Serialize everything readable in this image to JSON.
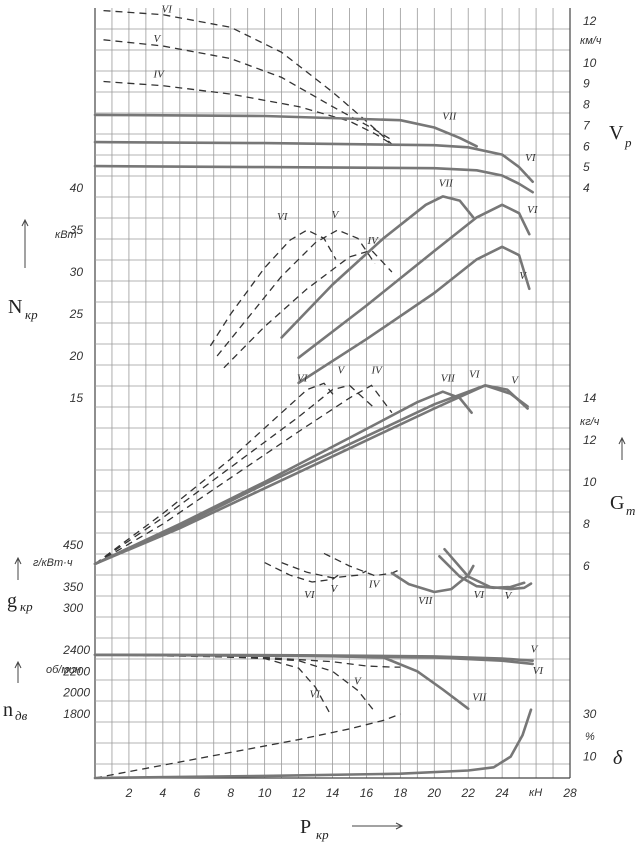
{
  "chart_data": {
    "type": "line",
    "x_axis": {
      "label_main": "P",
      "label_sub": "кр",
      "unit": "кН",
      "ticks": [
        "2",
        "4",
        "6",
        "8",
        "10",
        "12",
        "14",
        "16",
        "18",
        "20",
        "22",
        "24",
        "",
        "28"
      ],
      "range": [
        0,
        28
      ]
    },
    "gear_labels": [
      "IV",
      "V",
      "VI",
      "VII"
    ],
    "panels": {
      "velocity": {
        "label_main": "V",
        "label_sub": "р",
        "unit": "км/ч",
        "ticks": [
          "12",
          "10",
          "9",
          "8",
          "7",
          "6",
          "5",
          "4"
        ],
        "series": [
          {
            "gear": "VI",
            "style": "dashed",
            "x": [
              0.5,
              4,
              8,
              11,
              14,
              16,
              17.5
            ],
            "y": [
              12.5,
              12.3,
              11.7,
              10.5,
              8.6,
              7.2,
              6.1
            ]
          },
          {
            "gear": "V",
            "style": "dashed",
            "x": [
              0.5,
              4,
              8,
              11,
              14,
              16.5,
              17.5
            ],
            "y": [
              11.1,
              10.8,
              10.2,
              9.3,
              7.9,
              6.8,
              6.3
            ]
          },
          {
            "gear": "IV",
            "style": "dashed",
            "x": [
              0.5,
              4,
              8,
              12,
              15,
              16.5,
              17.5
            ],
            "y": [
              9.1,
              8.9,
              8.5,
              7.9,
              7.2,
              6.6,
              6.1
            ]
          },
          {
            "gear": "VII",
            "style": "solid",
            "x": [
              0,
              10,
              18,
              20,
              21.5,
              22.5
            ],
            "y": [
              7.5,
              7.45,
              7.25,
              6.9,
              6.4,
              6.0
            ]
          },
          {
            "gear": "VI",
            "style": "solid",
            "x": [
              0,
              10,
              20,
              22,
              24,
              25,
              25.8
            ],
            "y": [
              6.2,
              6.15,
              6.05,
              5.95,
              5.6,
              5.0,
              4.3
            ]
          },
          {
            "gear": "V",
            "style": "solid",
            "x": [
              0,
              10,
              20,
              22.5,
              24,
              25,
              25.8
            ],
            "y": [
              5.05,
              5.0,
              4.95,
              4.85,
              4.6,
              4.2,
              3.8
            ]
          }
        ]
      },
      "power": {
        "label_main": "N",
        "label_sub": "кр",
        "unit": "кВт",
        "ticks": [
          "40",
          "35",
          "30",
          "25",
          "20",
          "15"
        ],
        "series": [
          {
            "gear": "VI",
            "style": "dashed",
            "x": [
              6.8,
              8,
              10,
              11.5,
              12.5,
              13.5,
              14.2
            ],
            "y": [
              21.2,
              25,
              30.5,
              33.8,
              35,
              34,
              31.5
            ]
          },
          {
            "gear": "V",
            "style": "dashed",
            "x": [
              7.2,
              9,
              11,
              13,
              14.3,
              15.5,
              16.5
            ],
            "y": [
              20,
              24.5,
              29.5,
              33.5,
              35,
              34,
              31
            ]
          },
          {
            "gear": "IV",
            "style": "dashed",
            "x": [
              7.6,
              10,
              12.5,
              15,
              16.3,
              17.5
            ],
            "y": [
              18.6,
              23.5,
              28,
              31.8,
              32.6,
              30
            ]
          },
          {
            "gear": "VII",
            "style": "solid",
            "x": [
              11,
              14,
              17,
              19.5,
              20.5,
              21.5,
              22.3
            ],
            "y": [
              22.2,
              28.5,
              34,
              38,
              39,
              38.5,
              36.5
            ]
          },
          {
            "gear": "VI",
            "style": "solid",
            "x": [
              12,
              16,
              20,
              22.5,
              24,
              25,
              25.6
            ],
            "y": [
              19.8,
              26,
              32.5,
              36.5,
              38,
              37,
              34.5
            ]
          },
          {
            "gear": "V",
            "style": "solid",
            "x": [
              12,
              16,
              20,
              22.5,
              24,
              25,
              25.6
            ],
            "y": [
              16.8,
              22,
              27.5,
              31.5,
              33,
              32,
              28
            ]
          }
        ]
      },
      "fuel_rate": {
        "label_main": "G",
        "label_sub": "т",
        "unit": "кг/ч",
        "ticks": [
          "14",
          "12",
          "10",
          "8",
          "6"
        ],
        "series": [
          {
            "gear": "VI",
            "style": "dashed",
            "x": [
              0,
              4,
              8,
              11,
              12.5,
              13.5,
              14.2
            ],
            "y": [
              6.1,
              8.5,
              11.1,
              13.3,
              14.4,
              14.7,
              14.0
            ]
          },
          {
            "gear": "V",
            "style": "dashed",
            "x": [
              0,
              4,
              8,
              12,
              14,
              15,
              16.5
            ],
            "y": [
              6.1,
              8.3,
              10.7,
              13.1,
              14.4,
              14.6,
              13.5
            ]
          },
          {
            "gear": "IV",
            "style": "dashed",
            "x": [
              0,
              4,
              8,
              12,
              15,
              16.3,
              17.5
            ],
            "y": [
              6.1,
              8.0,
              10.2,
              12.4,
              14.0,
              14.6,
              13.3
            ]
          },
          {
            "gear": "VII",
            "style": "solid",
            "x": [
              0,
              5,
              10,
              15,
              19,
              20.5,
              21.5,
              22.2
            ],
            "y": [
              6.1,
              8.0,
              10.0,
              12.1,
              13.8,
              14.3,
              14.0,
              13.3
            ]
          },
          {
            "gear": "VI",
            "style": "solid",
            "x": [
              0,
              5,
              10,
              15,
              20,
              23,
              24.5,
              25.5
            ],
            "y": [
              6.1,
              7.9,
              9.9,
              11.8,
              13.7,
              14.6,
              14.2,
              13.6
            ]
          },
          {
            "gear": "V",
            "style": "solid",
            "x": [
              0,
              5,
              10,
              15,
              20,
              23,
              24.3,
              25.5
            ],
            "y": [
              6.1,
              7.8,
              9.7,
              11.6,
              13.5,
              14.6,
              14.4,
              13.5
            ]
          }
        ]
      },
      "specific_fuel": {
        "label_main": "g",
        "label_sub": "кр",
        "unit": "г/кВт·ч",
        "ticks": [
          "450",
          "350",
          "300"
        ],
        "series": [
          {
            "gear": "VI",
            "style": "dashed",
            "x": [
              10,
              11.5,
              12.8,
              14,
              14.5
            ],
            "y": [
              408,
              378,
              362,
              368,
              383
            ]
          },
          {
            "gear": "V",
            "style": "dashed",
            "x": [
              11,
              12.5,
              14,
              15.5,
              16
            ],
            "y": [
              408,
              385,
              372,
              378,
              388
            ]
          },
          {
            "gear": "IV",
            "style": "dashed",
            "x": [
              13.5,
              15,
              16.5,
              17.5,
              18
            ],
            "y": [
              430,
              400,
              377,
              383,
              392
            ]
          },
          {
            "gear": "VII",
            "style": "solid",
            "x": [
              17.5,
              18.5,
              20,
              21,
              22,
              22.3
            ],
            "y": [
              383,
              357,
              338,
              345,
              378,
              400
            ]
          },
          {
            "gear": "VI",
            "style": "solid",
            "x": [
              20.3,
              21.5,
              22.5,
              23.5,
              24.5,
              25.3
            ],
            "y": [
              423,
              375,
              352,
              348,
              350,
              360
            ]
          },
          {
            "gear": "V",
            "style": "solid",
            "x": [
              20.6,
              22,
              23.3,
              24.5,
              25.3,
              25.7
            ],
            "y": [
              440,
              375,
              350,
              345,
              348,
              358
            ]
          }
        ]
      },
      "engine_speed": {
        "label_main": "n",
        "label_sub": "дв",
        "unit": "об/мин",
        "ticks": [
          "2400",
          "2200",
          "2000",
          "1800"
        ],
        "series": [
          {
            "gear": "VI",
            "style": "dashed",
            "x": [
              0,
              6,
              10,
              12,
              13,
              13.8
            ],
            "y": [
              2355,
              2345,
              2320,
              2230,
              2050,
              1820
            ]
          },
          {
            "gear": "V",
            "style": "dashed",
            "x": [
              0,
              8,
              12,
              14,
              15.5,
              16.5
            ],
            "y": [
              2355,
              2340,
              2300,
              2200,
              2020,
              1820
            ]
          },
          {
            "gear": "IV",
            "style": "dashed",
            "x": [
              0,
              10,
              14,
              16,
              17.5,
              18
            ],
            "y": [
              2355,
              2330,
              2290,
              2250,
              2240,
              2240
            ]
          },
          {
            "gear": "VII",
            "style": "solid",
            "x": [
              0,
              12,
              17,
              19,
              20.5,
              22
            ],
            "y": [
              2355,
              2350,
              2330,
              2200,
              2030,
              1850
            ]
          },
          {
            "gear": "VI",
            "style": "solid",
            "x": [
              0,
              12,
              20,
              24,
              25.8
            ],
            "y": [
              2355,
              2345,
              2330,
              2300,
              2270
            ]
          },
          {
            "gear": "V",
            "style": "solid",
            "x": [
              0,
              12,
              20,
              24,
              25.8
            ],
            "y": [
              2355,
              2350,
              2340,
              2320,
              2300
            ]
          }
        ]
      },
      "slip": {
        "label_main": "δ",
        "unit": "%",
        "ticks": [
          "30",
          "10"
        ],
        "series": [
          {
            "style": "dashed",
            "x": [
              0,
              4,
              8,
              12,
              15,
              17,
              18
            ],
            "y": [
              0,
              6,
              12,
              18,
              23,
              27,
              30
            ]
          },
          {
            "style": "solid",
            "x": [
              0,
              10,
              18,
              22,
              23.5,
              24.5,
              25.2,
              25.7
            ],
            "y": [
              0,
              1,
              2,
              3.5,
              5,
              10,
              20,
              32
            ]
          }
        ]
      }
    }
  }
}
